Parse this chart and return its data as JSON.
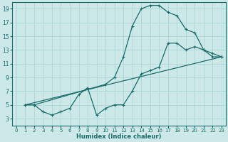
{
  "xlabel": "Humidex (Indice chaleur)",
  "bg_color": "#cce8e8",
  "line_color": "#1a6b6b",
  "grid_color": "#b0d8d8",
  "xlim": [
    -0.5,
    23.5
  ],
  "ylim": [
    2,
    20
  ],
  "xticks": [
    0,
    1,
    2,
    3,
    4,
    5,
    6,
    7,
    8,
    9,
    10,
    11,
    12,
    13,
    14,
    15,
    16,
    17,
    18,
    19,
    20,
    21,
    22,
    23
  ],
  "yticks": [
    3,
    5,
    7,
    9,
    11,
    13,
    15,
    17,
    19
  ],
  "line1_x": [
    1,
    2,
    10,
    11,
    12,
    13,
    14,
    15,
    16,
    17,
    18,
    19,
    20,
    21,
    22,
    23
  ],
  "line1_y": [
    5,
    5,
    8,
    9,
    12,
    16.5,
    19,
    19.5,
    19.5,
    18.5,
    18,
    16,
    15.5,
    13,
    12,
    12
  ],
  "line2_x": [
    1,
    2,
    3,
    4,
    5,
    6,
    7,
    8,
    9,
    10,
    11,
    12,
    13,
    14,
    15,
    16,
    17,
    18,
    19,
    20,
    21,
    22,
    23
  ],
  "line2_y": [
    5,
    5,
    4,
    3.5,
    4,
    4.5,
    6.5,
    7.5,
    3.5,
    4.5,
    5,
    5,
    7,
    9.5,
    10,
    10.5,
    14,
    14,
    13,
    13.5,
    13,
    12.5,
    12
  ],
  "line3_x": [
    1,
    23
  ],
  "line3_y": [
    5,
    12
  ]
}
